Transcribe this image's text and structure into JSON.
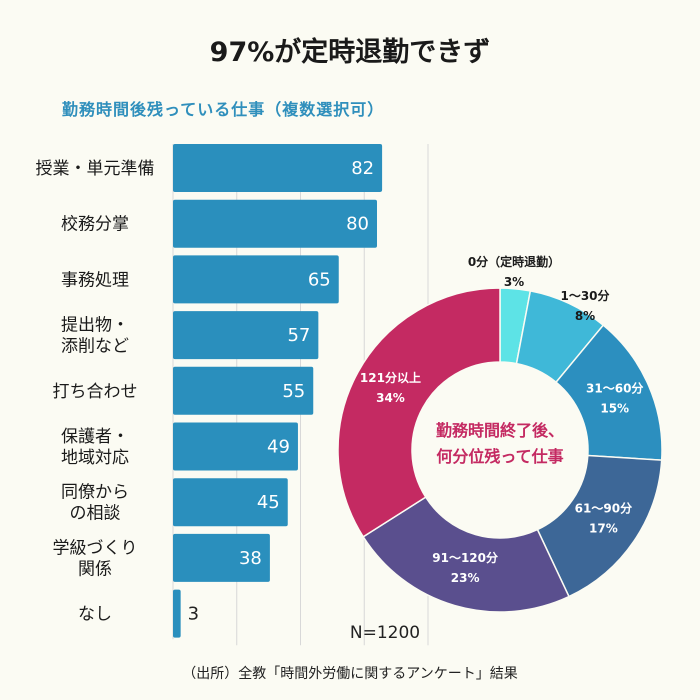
{
  "title": "97%が定時退勤できず",
  "source": "（出所）全教「時間外労働に関するアンケート」結果",
  "colors": {
    "bar": "#2a8fbd",
    "grid": "#d8d8d8",
    "title_accent": "#2f8fbc",
    "donut_center_text": "#c42a62"
  },
  "chart_data": [
    {
      "type": "bar",
      "orientation": "horizontal",
      "title": "勤務時間後残っている仕事（複数選択可）",
      "categories": [
        [
          "授業・単元準備"
        ],
        [
          "校務分掌"
        ],
        [
          "事務処理"
        ],
        [
          "提出物・",
          "添削など"
        ],
        [
          "打ち合わせ"
        ],
        [
          "保護者・",
          "地域対応"
        ],
        [
          "同僚から",
          "の相談"
        ],
        [
          "学級づくり",
          "関係"
        ],
        [
          "なし"
        ]
      ],
      "values": [
        82,
        80,
        65,
        57,
        55,
        49,
        45,
        38,
        3
      ],
      "xlim": [
        0,
        100
      ],
      "grid": true,
      "note": "N=1200"
    },
    {
      "type": "pie",
      "donut": true,
      "center_text": [
        "勤務時間終了後、",
        "何分位残って仕事"
      ],
      "slices": [
        {
          "label": "0分（定時退勤）",
          "value": 3,
          "pct": "3%",
          "color": "#5de3e6"
        },
        {
          "label": "1～30分",
          "value": 8,
          "pct": "8%",
          "color": "#3fb8d8"
        },
        {
          "label": "31～60分",
          "value": 15,
          "pct": "15%",
          "color": "#2c8fbf"
        },
        {
          "label": "61～90分",
          "value": 17,
          "pct": "17%",
          "color": "#3d6797"
        },
        {
          "label": "91～120分",
          "value": 23,
          "pct": "23%",
          "color": "#5a4f8e"
        },
        {
          "label": "121分以上",
          "value": 34,
          "pct": "34%",
          "color": "#c42a62"
        }
      ]
    }
  ]
}
